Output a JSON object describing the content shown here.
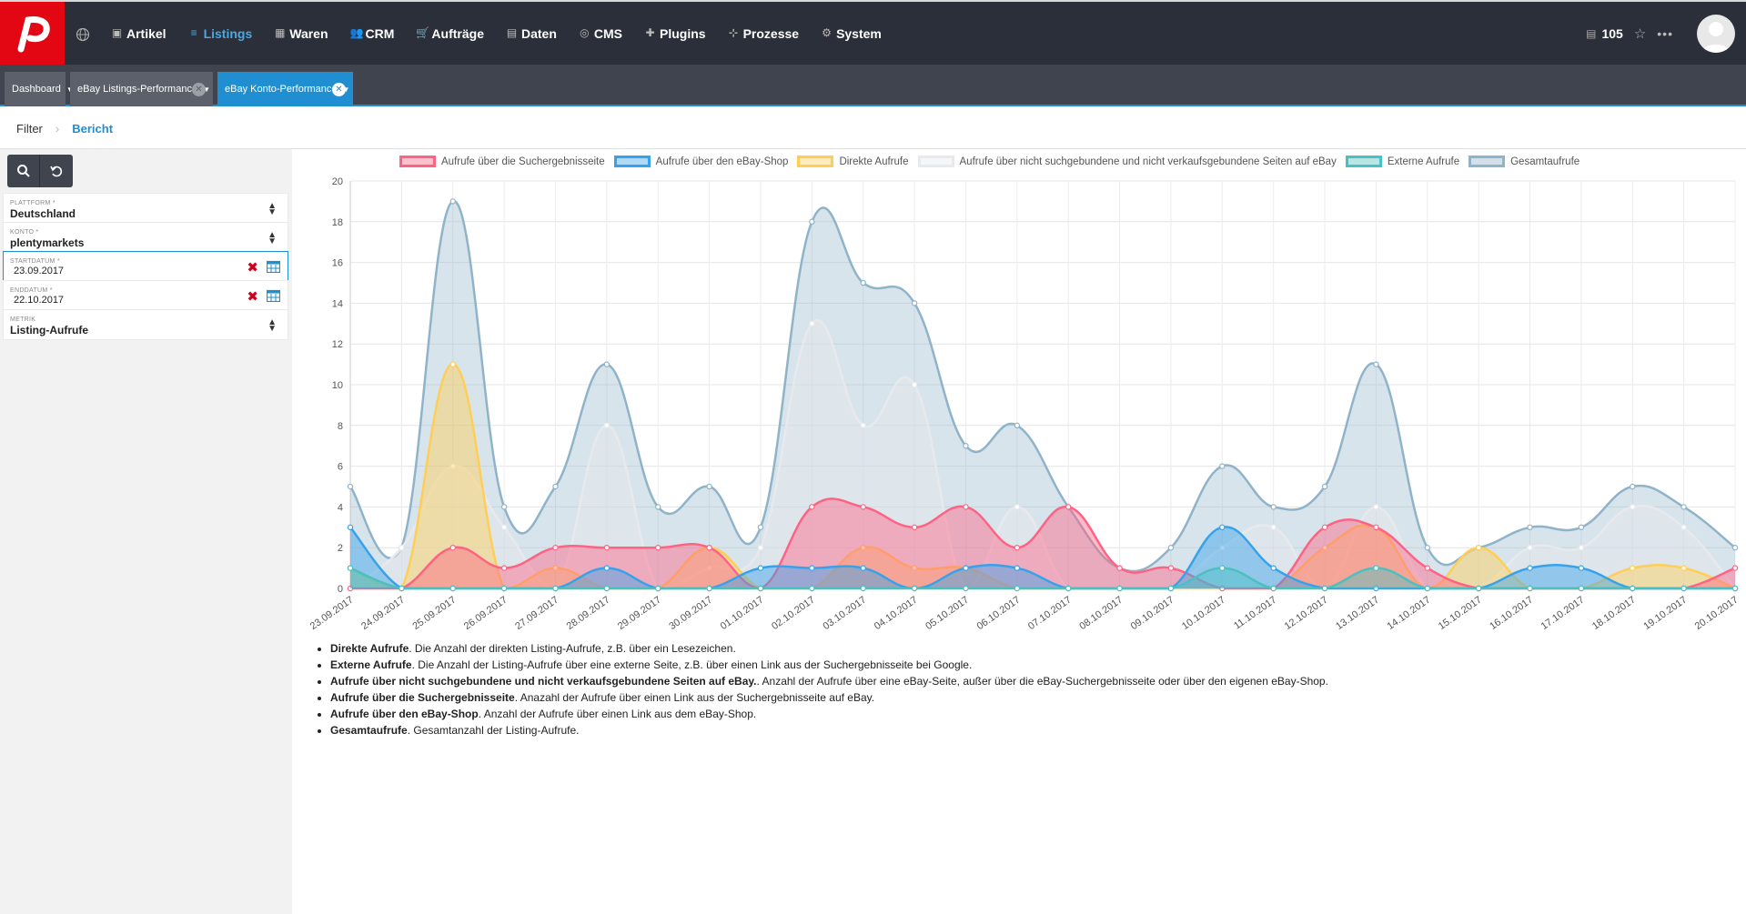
{
  "nav": {
    "items": [
      {
        "label": "Artikel",
        "icon": "cube-icon"
      },
      {
        "label": "Listings",
        "icon": "list-icon",
        "active": true
      },
      {
        "label": "Waren",
        "icon": "boxes-icon"
      },
      {
        "label": "CRM",
        "icon": "users-icon"
      },
      {
        "label": "Aufträge",
        "icon": "cart-icon"
      },
      {
        "label": "Daten",
        "icon": "database-icon"
      },
      {
        "label": "CMS",
        "icon": "globe-icon"
      },
      {
        "label": "Plugins",
        "icon": "puzzle-icon"
      },
      {
        "label": "Prozesse",
        "icon": "sitemap-icon"
      },
      {
        "label": "System",
        "icon": "gear-icon"
      }
    ],
    "count": "105"
  },
  "tabs": [
    {
      "label": "Dashboard"
    },
    {
      "label": "eBay Listings-Performance"
    },
    {
      "label": "eBay Konto-Performance"
    }
  ],
  "subnav": {
    "filter": "Filter",
    "bericht": "Bericht"
  },
  "filters": {
    "plattform": {
      "label": "Plattform *",
      "value": "Deutschland"
    },
    "konto": {
      "label": "Konto *",
      "value": "plentymarkets"
    },
    "startdatum": {
      "label": "Startdatum *",
      "value": "23.09.2017"
    },
    "enddatum": {
      "label": "Enddatum *",
      "value": "22.10.2017"
    },
    "metrik": {
      "label": "Metrik",
      "value": "Listing-Aufrufe"
    }
  },
  "colors": {
    "accent": "#1f8fd1",
    "brand": "#e30613"
  },
  "chart_data": {
    "type": "area",
    "x": [
      "23.09.2017",
      "24.09.2017",
      "25.09.2017",
      "26.09.2017",
      "27.09.2017",
      "28.09.2017",
      "29.09.2017",
      "30.09.2017",
      "01.10.2017",
      "02.10.2017",
      "03.10.2017",
      "04.10.2017",
      "05.10.2017",
      "06.10.2017",
      "07.10.2017",
      "08.10.2017",
      "09.10.2017",
      "10.10.2017",
      "11.10.2017",
      "12.10.2017",
      "13.10.2017",
      "14.10.2017",
      "15.10.2017",
      "16.10.2017",
      "17.10.2017",
      "18.10.2017",
      "19.10.2017",
      "20.10.2017"
    ],
    "ylim": [
      0,
      20
    ],
    "yticks": [
      0,
      2,
      4,
      6,
      8,
      10,
      12,
      14,
      16,
      18,
      20
    ],
    "series": [
      {
        "name": "Aufrufe über die Suchergebnisseite",
        "color": "#ff6384",
        "values": [
          0,
          0,
          2,
          1,
          2,
          2,
          2,
          2,
          0,
          4,
          4,
          3,
          4,
          2,
          4,
          1,
          1,
          0,
          0,
          3,
          3,
          1,
          0,
          0,
          0,
          0,
          0,
          1
        ]
      },
      {
        "name": "Aufrufe über den eBay-Shop",
        "color": "#36a2eb",
        "values": [
          3,
          0,
          0,
          0,
          0,
          1,
          0,
          0,
          1,
          1,
          1,
          0,
          1,
          1,
          0,
          0,
          0,
          3,
          1,
          0,
          0,
          0,
          0,
          1,
          1,
          0,
          0,
          0
        ]
      },
      {
        "name": "Direkte Aufrufe",
        "color": "#ffce56",
        "values": [
          1,
          0,
          11,
          0,
          1,
          0,
          0,
          2,
          0,
          0,
          2,
          1,
          1,
          0,
          0,
          0,
          0,
          0,
          0,
          2,
          3,
          0,
          2,
          0,
          0,
          1,
          1,
          0
        ]
      },
      {
        "name": "Aufrufe über nicht suchgebundene und nicht verkaufsgebundene Seiten auf eBay",
        "color": "#e7e9ed",
        "values": [
          0,
          2,
          6,
          3,
          0,
          8,
          0,
          1,
          2,
          13,
          8,
          10,
          0,
          4,
          0,
          0,
          0,
          2,
          3,
          0,
          4,
          0,
          0,
          2,
          2,
          4,
          3,
          0
        ]
      },
      {
        "name": "Externe Aufrufe",
        "color": "#4bc0c0",
        "values": [
          1,
          0,
          0,
          0,
          0,
          0,
          0,
          0,
          0,
          0,
          0,
          0,
          0,
          0,
          0,
          0,
          0,
          1,
          0,
          0,
          1,
          0,
          0,
          0,
          0,
          0,
          0,
          0
        ]
      },
      {
        "name": "Gesamtaufrufe",
        "color": "#8fb3c8",
        "values": [
          5,
          2,
          19,
          4,
          5,
          11,
          4,
          5,
          3,
          18,
          15,
          14,
          7,
          8,
          4,
          1,
          2,
          6,
          4,
          5,
          11,
          2,
          2,
          3,
          3,
          5,
          4,
          2
        ]
      }
    ]
  },
  "descriptions": [
    {
      "term": "Direkte Aufrufe",
      "text": ". Die Anzahl der direkten Listing-Aufrufe, z.B. über ein Lesezeichen."
    },
    {
      "term": "Externe Aufrufe",
      "text": ". Die Anzahl der Listing-Aufrufe über eine externe Seite, z.B. über einen Link aus der Suchergebnisseite bei Google."
    },
    {
      "term": "Aufrufe über nicht suchgebundene und nicht verkaufsgebundene Seiten auf eBay.",
      "text": ". Anzahl der Aufrufe über eine eBay-Seite, außer über die eBay-Suchergebnisseite oder über den eigenen eBay-Shop."
    },
    {
      "term": "Aufrufe über die Suchergebnisseite",
      "text": ". Anazahl der Aufrufe über einen Link aus der Suchergebnisseite auf eBay."
    },
    {
      "term": "Aufrufe über den eBay-Shop",
      "text": ". Anzahl der Aufrufe über einen Link aus dem eBay-Shop."
    },
    {
      "term": "Gesamtaufrufe",
      "text": ". Gesamtanzahl der Listing-Aufrufe."
    }
  ]
}
